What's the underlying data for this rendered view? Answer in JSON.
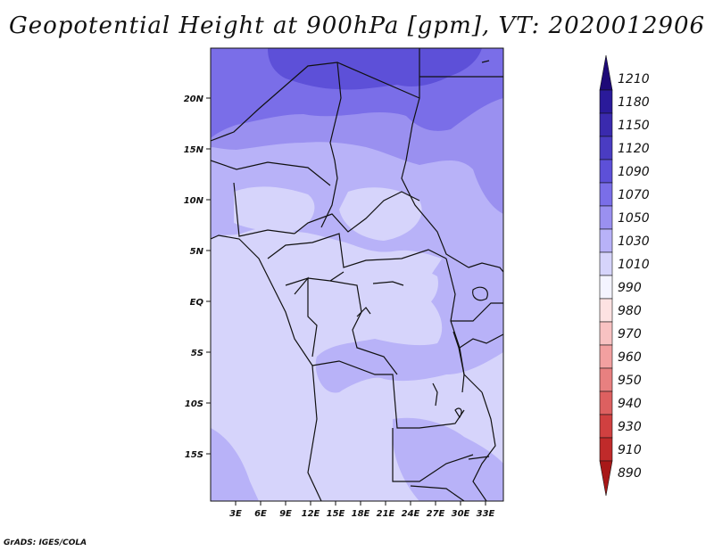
{
  "title": "Geopotential Height at 900hPa [gpm], VT: 2020012906",
  "credit": "GrADS: IGES/COLA",
  "map": {
    "lat_labels": [
      "20N",
      "15N",
      "10N",
      "5N",
      "EQ",
      "5S",
      "10S",
      "15S"
    ],
    "lon_labels": [
      "3E",
      "6E",
      "9E",
      "12E",
      "15E",
      "18E",
      "21E",
      "24E",
      "27E",
      "30E",
      "33E"
    ]
  },
  "colorbar": {
    "labels": [
      "1210",
      "1180",
      "1150",
      "1120",
      "1090",
      "1070",
      "1050",
      "1030",
      "1010",
      "990",
      "980",
      "970",
      "960",
      "950",
      "940",
      "930",
      "910",
      "890"
    ],
    "colors": [
      "#1e0a78",
      "#2a1a9a",
      "#3a2aae",
      "#4a3cc2",
      "#5d50d8",
      "#7a6ee8",
      "#9a90f0",
      "#b8b2f8",
      "#d6d4fb",
      "#f4f4ff",
      "#fde2e2",
      "#f8c2c2",
      "#f2a0a0",
      "#e88080",
      "#dd6060",
      "#d04040",
      "#c02a2a",
      "#a81818"
    ]
  }
}
